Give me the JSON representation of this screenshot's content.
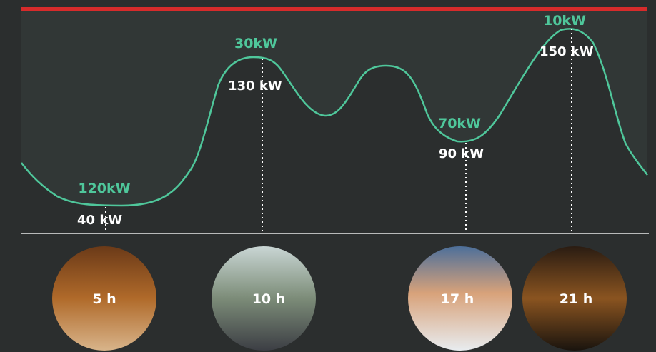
{
  "markers": [
    {
      "peak_label": "120kW",
      "value_label": "40 kW"
    },
    {
      "peak_label": "30kW",
      "value_label": "130 kW"
    },
    {
      "peak_label": "70kW",
      "value_label": "90 kW"
    },
    {
      "peak_label": "10kW",
      "value_label": "150 kW"
    }
  ],
  "photos": [
    {
      "label": "5 h"
    },
    {
      "label": "10 h"
    },
    {
      "label": "17 h"
    },
    {
      "label": "21 h"
    }
  ]
}
